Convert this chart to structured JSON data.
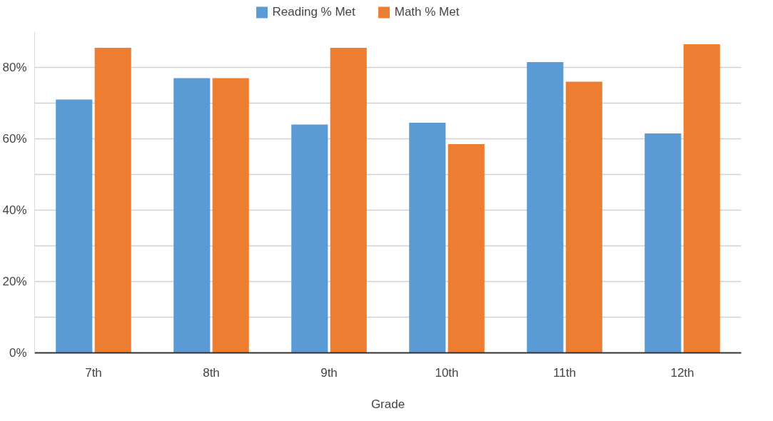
{
  "chart_data": {
    "type": "bar",
    "xlabel": "Grade",
    "categories": [
      "7th",
      "8th",
      "9th",
      "10th",
      "11th",
      "12th"
    ],
    "series": [
      {
        "name": "Reading % Met",
        "color": "#5b9bd5",
        "values": [
          71,
          77,
          64,
          64.5,
          81.5,
          61.5
        ]
      },
      {
        "name": "Math % Met",
        "color": "#ed7d31",
        "values": [
          85.5,
          77,
          85.5,
          58.5,
          76,
          86.5
        ]
      }
    ],
    "ylim": [
      0,
      90
    ],
    "yticks": [
      {
        "value": 0,
        "label": "0%"
      },
      {
        "value": 10,
        "label": null
      },
      {
        "value": 20,
        "label": "20%"
      },
      {
        "value": 30,
        "label": null
      },
      {
        "value": 40,
        "label": "40%"
      },
      {
        "value": 50,
        "label": null
      },
      {
        "value": 60,
        "label": "60%"
      },
      {
        "value": 70,
        "label": null
      },
      {
        "value": 80,
        "label": "80%"
      }
    ],
    "grid": "y",
    "legend": "top"
  }
}
